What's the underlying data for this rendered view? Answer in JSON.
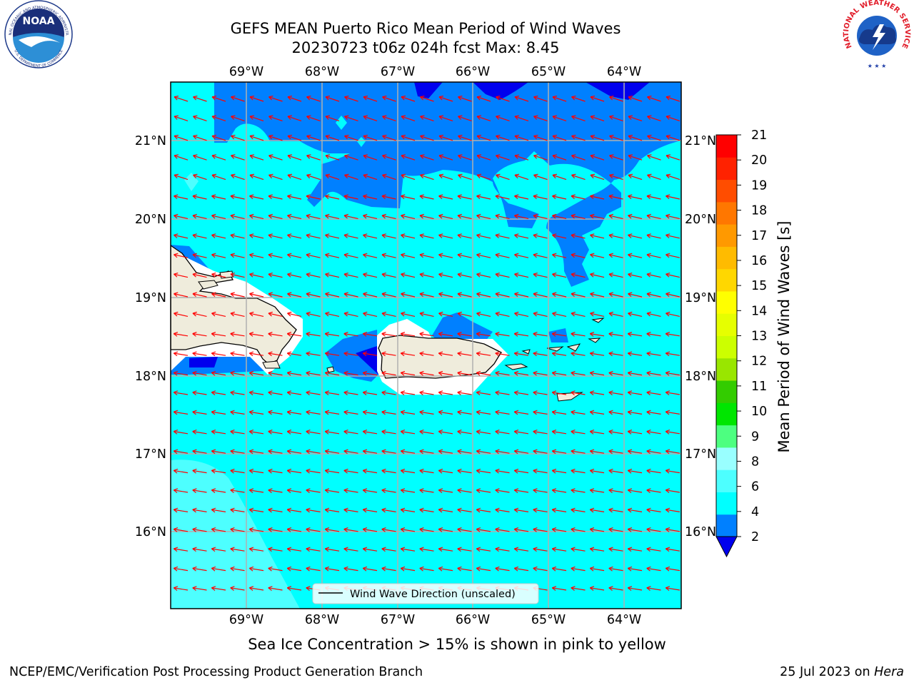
{
  "header": {
    "title_line1": "GEFS MEAN Puerto Rico Mean Period of Wind Waves",
    "title_line2": "20230723 t06z 024h fcst   Max: 8.45"
  },
  "logos": {
    "noaa": {
      "text": "NOAA",
      "ring_top": "NATIONAL OCEANIC AND ATMOSPHERIC ADMINISTRATION",
      "ring_bottom": "U.S. DEPARTMENT OF COMMERCE"
    },
    "nws": {
      "ring": "NATIONAL WEATHER SERVICE"
    }
  },
  "map": {
    "lon_labels": [
      "69°W",
      "68°W",
      "67°W",
      "66°W",
      "65°W",
      "64°W"
    ],
    "lat_labels": [
      "21°N",
      "20°N",
      "19°N",
      "18°N",
      "17°N",
      "16°N"
    ],
    "legend_label": "Wind Wave Direction (unscaled)",
    "colors": {
      "land": "#efecdc",
      "sea_4_6": "#00ffff",
      "sea_2_4": "#0080ff",
      "sea_below_2": "#0000ee",
      "sea_6_8": "#4dffff",
      "arrows": "#ff0000",
      "grid": "#b0b0b0"
    }
  },
  "colorbar": {
    "label": "Mean Period of Wind Waves [s]",
    "ticks": [
      "2",
      "4",
      "6",
      "8",
      "9",
      "10",
      "11",
      "12",
      "13",
      "14",
      "15",
      "16",
      "17",
      "18",
      "19",
      "20",
      "21"
    ],
    "colors": [
      "#0080ff",
      "#00ffff",
      "#4dffff",
      "#99ffff",
      "#4dff80",
      "#00e600",
      "#33cc00",
      "#99e600",
      "#ccff00",
      "#e6ff00",
      "#ffff00",
      "#ffd700",
      "#ffbb00",
      "#ff9900",
      "#ff7700",
      "#ff4d00",
      "#ff2200",
      "#ff0000"
    ],
    "extend_color": "#0000ee"
  },
  "footer": {
    "note": "Sea Ice Concentration > 15% is shown in pink to yellow",
    "credit_left": "NCEP/EMC/Verification Post Processing Product Generation Branch",
    "credit_date": "25 Jul 2023 on ",
    "credit_system": "Hera"
  }
}
